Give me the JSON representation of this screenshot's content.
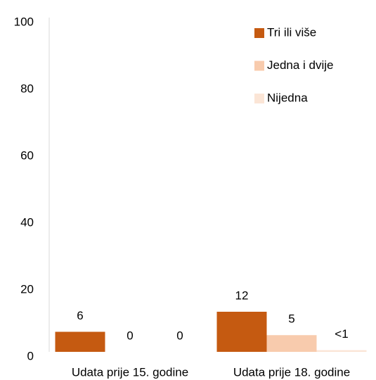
{
  "chart_data": {
    "type": "bar",
    "categories": [
      "Udata prije 15. godine",
      "Udata prije 18. godine"
    ],
    "series": [
      {
        "name": "Tri ili više",
        "color": "#c55a11",
        "values": [
          6,
          12
        ],
        "value_labels": [
          "6",
          "12"
        ]
      },
      {
        "name": "Jedna i dvije",
        "color": "#f8cbad",
        "values": [
          0,
          5
        ],
        "value_labels": [
          "0",
          "5"
        ]
      },
      {
        "name": "Nijedna",
        "color": "#fbe5d6",
        "values": [
          0,
          0.5
        ],
        "value_labels": [
          "0",
          "<1"
        ]
      }
    ],
    "ylim": [
      0,
      100
    ],
    "yticks": [
      0,
      20,
      40,
      60,
      80,
      100
    ],
    "grid": false,
    "legend": "top-right"
  }
}
